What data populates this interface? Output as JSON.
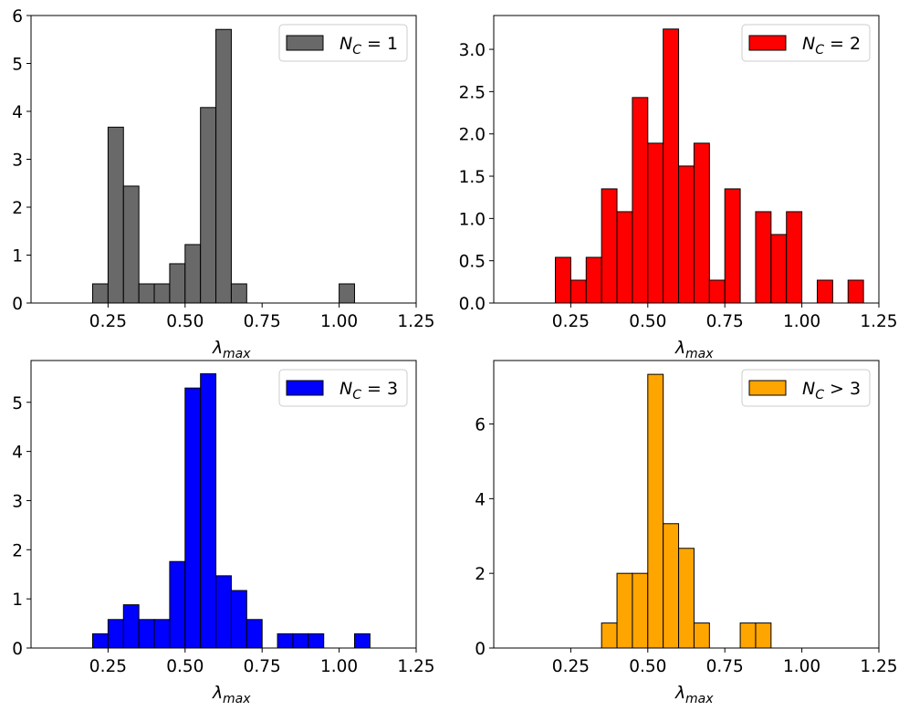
{
  "chart_data": [
    {
      "type": "bar",
      "subtype": "histogram",
      "series_name": "N_C = 1",
      "legend": {
        "main": "N",
        "sub": "C",
        "rest": " = 1",
        "location": "upper-right"
      },
      "color": "#696969",
      "xlabel": {
        "main": "λ",
        "sub": "max"
      },
      "xlim": [
        0.0,
        1.25
      ],
      "ylim": [
        0,
        6
      ],
      "xticks": [
        0.25,
        0.5,
        0.75,
        1.0,
        1.25
      ],
      "xtick_labels": [
        "0.25",
        "0.50",
        "0.75",
        "1.00",
        "1.25"
      ],
      "yticks": [
        0,
        1,
        2,
        3,
        4,
        5,
        6
      ],
      "ytick_labels": [
        "0",
        "1",
        "2",
        "3",
        "4",
        "5",
        "6"
      ],
      "bin_width": 0.05,
      "bins": [
        {
          "x0": 0.2,
          "value": 0.4
        },
        {
          "x0": 0.25,
          "value": 3.67
        },
        {
          "x0": 0.3,
          "value": 2.44
        },
        {
          "x0": 0.35,
          "value": 0.4
        },
        {
          "x0": 0.4,
          "value": 0.4
        },
        {
          "x0": 0.45,
          "value": 0.82
        },
        {
          "x0": 0.5,
          "value": 1.22
        },
        {
          "x0": 0.55,
          "value": 4.08
        },
        {
          "x0": 0.6,
          "value": 5.71
        },
        {
          "x0": 0.65,
          "value": 0.4
        },
        {
          "x0": 1.0,
          "value": 0.4
        }
      ],
      "baseline_range": [
        0.1,
        1.25
      ]
    },
    {
      "type": "bar",
      "subtype": "histogram",
      "series_name": "N_C = 2",
      "legend": {
        "main": "N",
        "sub": "C",
        "rest": " = 2",
        "location": "upper-right"
      },
      "color": "#ff0000",
      "xlabel": {
        "main": "λ",
        "sub": "max"
      },
      "xlim": [
        0.0,
        1.25
      ],
      "ylim": [
        0,
        3.4
      ],
      "xticks": [
        0.25,
        0.5,
        0.75,
        1.0,
        1.25
      ],
      "xtick_labels": [
        "0.25",
        "0.50",
        "0.75",
        "1.00",
        "1.25"
      ],
      "yticks": [
        0,
        0.5,
        1.0,
        1.5,
        2.0,
        2.5,
        3.0
      ],
      "ytick_labels": [
        "0.0",
        "0.5",
        "1.0",
        "1.5",
        "2.0",
        "2.5",
        "3.0"
      ],
      "bin_width": 0.05,
      "bins": [
        {
          "x0": 0.2,
          "value": 0.54
        },
        {
          "x0": 0.25,
          "value": 0.27
        },
        {
          "x0": 0.3,
          "value": 0.54
        },
        {
          "x0": 0.35,
          "value": 1.35
        },
        {
          "x0": 0.4,
          "value": 1.08
        },
        {
          "x0": 0.45,
          "value": 2.43
        },
        {
          "x0": 0.5,
          "value": 1.89
        },
        {
          "x0": 0.55,
          "value": 3.24
        },
        {
          "x0": 0.6,
          "value": 1.62
        },
        {
          "x0": 0.65,
          "value": 1.89
        },
        {
          "x0": 0.7,
          "value": 0.27
        },
        {
          "x0": 0.75,
          "value": 1.35
        },
        {
          "x0": 0.85,
          "value": 1.08
        },
        {
          "x0": 0.9,
          "value": 0.81
        },
        {
          "x0": 0.95,
          "value": 1.08
        },
        {
          "x0": 1.05,
          "value": 0.27
        },
        {
          "x0": 1.15,
          "value": 0.27
        }
      ],
      "baseline_range": [
        0.1,
        1.2
      ]
    },
    {
      "type": "bar",
      "subtype": "histogram",
      "series_name": "N_C = 3",
      "legend": {
        "main": "N",
        "sub": "C",
        "rest": " = 3",
        "location": "upper-right"
      },
      "color": "#0000ff",
      "xlabel": {
        "main": "λ",
        "sub": "max"
      },
      "xlim": [
        0.0,
        1.25
      ],
      "ylim": [
        0,
        5.85
      ],
      "xticks": [
        0.25,
        0.5,
        0.75,
        1.0,
        1.25
      ],
      "xtick_labels": [
        "0.25",
        "0.50",
        "0.75",
        "1.00",
        "1.25"
      ],
      "yticks": [
        0,
        1,
        2,
        3,
        4,
        5
      ],
      "ytick_labels": [
        "0",
        "1",
        "2",
        "3",
        "4",
        "5"
      ],
      "bin_width": 0.05,
      "bins": [
        {
          "x0": 0.2,
          "value": 0.29
        },
        {
          "x0": 0.25,
          "value": 0.58
        },
        {
          "x0": 0.3,
          "value": 0.88
        },
        {
          "x0": 0.35,
          "value": 0.58
        },
        {
          "x0": 0.4,
          "value": 0.58
        },
        {
          "x0": 0.45,
          "value": 1.76
        },
        {
          "x0": 0.5,
          "value": 5.29
        },
        {
          "x0": 0.55,
          "value": 5.58
        },
        {
          "x0": 0.6,
          "value": 1.47
        },
        {
          "x0": 0.65,
          "value": 1.17
        },
        {
          "x0": 0.7,
          "value": 0.58
        },
        {
          "x0": 0.8,
          "value": 0.29
        },
        {
          "x0": 0.85,
          "value": 0.29
        },
        {
          "x0": 0.9,
          "value": 0.29
        },
        {
          "x0": 1.05,
          "value": 0.29
        }
      ],
      "baseline_range": [
        0.1,
        1.1
      ]
    },
    {
      "type": "bar",
      "subtype": "histogram",
      "series_name": "N_C > 3",
      "legend": {
        "main": "N",
        "sub": "C",
        "rest": " > 3",
        "location": "upper-right"
      },
      "color": "#ffa500",
      "xlabel": {
        "main": "λ",
        "sub": "max"
      },
      "xlim": [
        0.0,
        1.25
      ],
      "ylim": [
        0,
        7.7
      ],
      "xticks": [
        0.25,
        0.5,
        0.75,
        1.0,
        1.25
      ],
      "xtick_labels": [
        "0.25",
        "0.50",
        "0.75",
        "1.00",
        "1.25"
      ],
      "yticks": [
        0,
        2,
        4,
        6
      ],
      "ytick_labels": [
        "0",
        "2",
        "4",
        "6"
      ],
      "bin_width": 0.05,
      "bins": [
        {
          "x0": 0.35,
          "value": 0.67
        },
        {
          "x0": 0.4,
          "value": 2.0
        },
        {
          "x0": 0.45,
          "value": 2.0
        },
        {
          "x0": 0.5,
          "value": 7.33
        },
        {
          "x0": 0.55,
          "value": 3.33
        },
        {
          "x0": 0.6,
          "value": 2.67
        },
        {
          "x0": 0.65,
          "value": 0.67
        },
        {
          "x0": 0.8,
          "value": 0.67
        },
        {
          "x0": 0.85,
          "value": 0.67
        }
      ],
      "baseline_range": [
        0.1,
        1.2
      ]
    }
  ]
}
